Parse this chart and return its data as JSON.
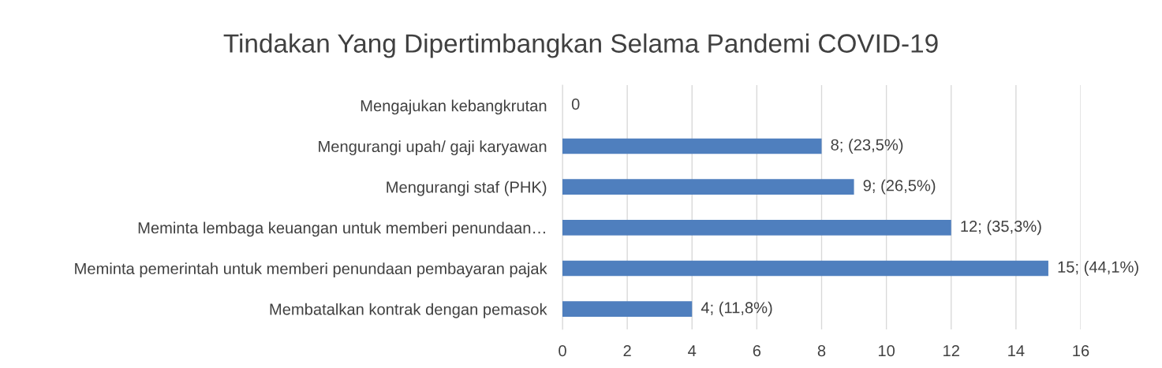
{
  "chart_data": {
    "type": "bar",
    "orientation": "horizontal",
    "title": "Tindakan Yang Dipertimbangkan Selama Pandemi COVID-19",
    "categories": [
      "Mengajukan kebangkrutan",
      "Mengurangi upah/ gaji karyawan",
      "Mengurangi staf (PHK)",
      "Meminta lembaga keuangan untuk memberi penundaan…",
      "Meminta pemerintah untuk memberi penundaan pembayaran pajak",
      "Membatalkan kontrak dengan pemasok"
    ],
    "values": [
      0,
      8,
      9,
      12,
      15,
      4
    ],
    "value_labels": [
      "0",
      "8; (23,5%)",
      "9; (26,5%)",
      "12; (35,3%)",
      "15; (44,1%)",
      "4; (11,8%)"
    ],
    "color": "#4f7fbe",
    "xlim": [
      0,
      16
    ],
    "xticks": [
      0,
      2,
      4,
      6,
      8,
      10,
      12,
      14,
      16
    ],
    "grid": "x",
    "legend": false
  }
}
